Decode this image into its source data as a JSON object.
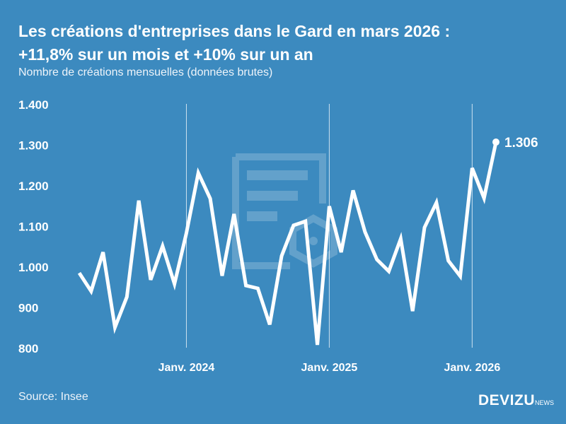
{
  "header": {
    "title_line1": "Les créations d'entreprises dans le Gard en mars 2026 :",
    "title_line2": "+11,8% sur un mois et +10% sur un an",
    "subtitle": "Nombre de créations mensuelles (données brutes)"
  },
  "footer": {
    "source": "Source: Insee",
    "logo_main": "DEVIZU",
    "logo_sub": "NEWS"
  },
  "colors": {
    "background": "#3c8abf",
    "line": "#ffffff"
  },
  "chart_data": {
    "type": "line",
    "title": "Les créations d'entreprises dans le Gard en mars 2026 : +11,8% sur un mois et +10% sur un an",
    "ylabel": "Nombre de créations mensuelles (données brutes)",
    "ylim": [
      800,
      1400
    ],
    "yticks": [
      "800",
      "900",
      "1.000",
      "1.100",
      "1.200",
      "1.300",
      "1.400"
    ],
    "xticks": [
      {
        "label": "Janv. 2024",
        "x": "2024-01"
      },
      {
        "label": "Janv. 2025",
        "x": "2025-01"
      },
      {
        "label": "Janv. 2026",
        "x": "2026-01"
      }
    ],
    "grid": "vertical lines at January",
    "x": [
      "2023-04",
      "2023-05",
      "2023-06",
      "2023-07",
      "2023-08",
      "2023-09",
      "2023-10",
      "2023-11",
      "2023-12",
      "2024-01",
      "2024-02",
      "2024-03",
      "2024-04",
      "2024-05",
      "2024-06",
      "2024-07",
      "2024-08",
      "2024-09",
      "2024-10",
      "2024-11",
      "2024-12",
      "2025-01",
      "2025-02",
      "2025-03",
      "2025-04",
      "2025-05",
      "2025-06",
      "2025-07",
      "2025-08",
      "2025-09",
      "2025-10",
      "2025-11",
      "2025-12",
      "2026-01",
      "2026-02",
      "2026-03"
    ],
    "values": [
      984,
      939,
      1035,
      850,
      925,
      1162,
      967,
      1050,
      957,
      1082,
      1230,
      1167,
      977,
      1129,
      953,
      946,
      857,
      1026,
      1101,
      1111,
      807,
      1148,
      1035,
      1187,
      1085,
      1017,
      988,
      1068,
      890,
      1096,
      1157,
      1014,
      976,
      1242,
      1168,
      1306
    ],
    "last_label": "1.306"
  }
}
